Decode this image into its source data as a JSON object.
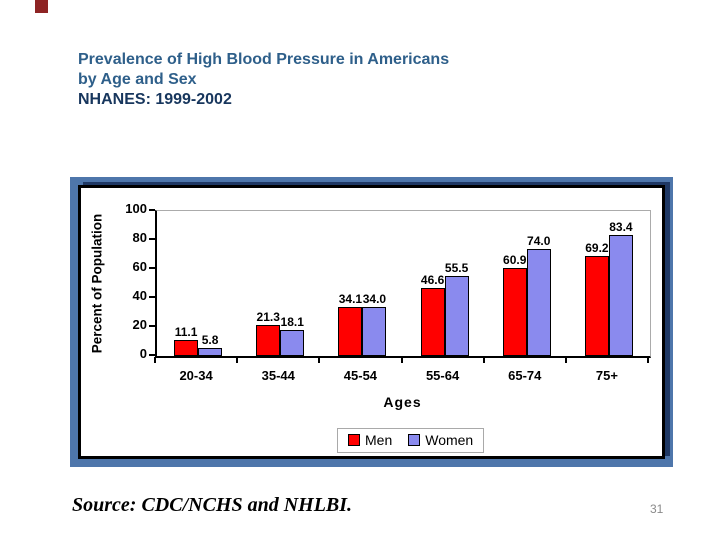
{
  "slide": {
    "title_line1": "Prevalence of High Blood Pressure in Americans",
    "title_line2": "by Age and Sex",
    "title_line3": "NHANES: 1999-2002",
    "source": "Source: CDC/NCHS and NHLBI.",
    "page_number": "31"
  },
  "colors": {
    "title_blue": "#2E5F8A",
    "title_navy": "#17365D",
    "panel_frame_blue": "#4E76AB",
    "panel_shadow_navy": "#1F3864",
    "men_red": "#FF0000",
    "women_blue": "#8A8AEE",
    "plot_border_gray": "#ABABAB",
    "page_number_gray": "#8A8A8A",
    "accent_dark_red": "#8E2424"
  },
  "chart_data": {
    "type": "bar",
    "categories": [
      "20-34",
      "35-44",
      "45-54",
      "55-64",
      "65-74",
      "75+"
    ],
    "series": [
      {
        "name": "Men",
        "color_key": "men_red",
        "values": [
          11.1,
          21.3,
          34.1,
          46.6,
          60.9,
          69.2
        ],
        "labels": [
          "11.1",
          "21.3",
          "34.1",
          "46.6",
          "60.9",
          "69.2"
        ]
      },
      {
        "name": "Women",
        "color_key": "women_blue",
        "values": [
          5.8,
          18.1,
          34.0,
          55.5,
          74.0,
          83.4
        ],
        "labels": [
          "5.8",
          "18.1",
          "34.0",
          "55.5",
          "74.0",
          "83.4"
        ]
      }
    ],
    "xlabel": "Ages",
    "ylabel": "Percent of Population",
    "ylim": [
      0,
      100
    ],
    "yticks": [
      100,
      80,
      60,
      40,
      20,
      0
    ],
    "grid": false,
    "legend_position": "bottom",
    "value_labels": true
  }
}
